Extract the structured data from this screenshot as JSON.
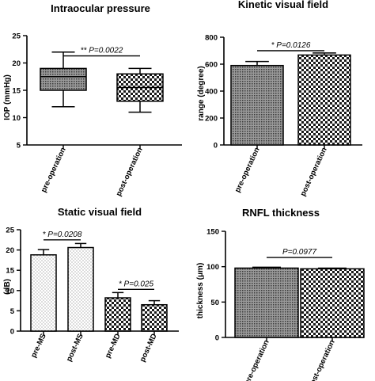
{
  "chart_data": [
    {
      "type": "box",
      "title": "Intraocular pressure",
      "ylabel": "IOP (mmHg)",
      "ylim": [
        5,
        25
      ],
      "yticks": [
        "5",
        "10",
        "15",
        "20",
        "25"
      ],
      "categories": [
        "pre-operation",
        "post-operation"
      ],
      "boxes": [
        {
          "min": 12,
          "q1": 15,
          "median": 17.5,
          "q3": 19,
          "max": 22,
          "pattern": "dots"
        },
        {
          "min": 11,
          "q1": 13,
          "median": 15.5,
          "q3": 18,
          "max": 19,
          "pattern": "checker"
        }
      ],
      "annotations": [
        {
          "text": "** P=0.0022",
          "from": 0,
          "to": 1,
          "y": 21.3
        }
      ]
    },
    {
      "type": "bar",
      "title": "Kinetic visual field",
      "ylabel": "range (degree)",
      "ylim": [
        0,
        800
      ],
      "yticks": [
        "0",
        "200",
        "400",
        "600",
        "800"
      ],
      "categories": [
        "pre-operation",
        "post-operation"
      ],
      "values": [
        590,
        668
      ],
      "errors": [
        30,
        15
      ],
      "patterns": [
        "dots",
        "checker"
      ],
      "annotations": [
        {
          "text": "* P=0.0126",
          "from": 0,
          "to": 1,
          "y": 700
        }
      ]
    },
    {
      "type": "bar",
      "title": "Static visual field",
      "ylabel": "(dB)",
      "ylim": [
        0,
        25
      ],
      "yticks": [
        "0",
        "5",
        "10",
        "15",
        "20",
        "25"
      ],
      "categories": [
        "pre-MS",
        "post-MS",
        "pre-MD",
        "post-MD"
      ],
      "values": [
        18.8,
        20.6,
        8.2,
        6.5
      ],
      "errors": [
        1.3,
        1.0,
        1.3,
        1.0
      ],
      "patterns": [
        "light-dots",
        "light-dots",
        "checker",
        "checker"
      ],
      "annotations": [
        {
          "text": "* P=0.0208",
          "from": 0,
          "to": 1,
          "y": 22.5
        },
        {
          "text": "* P=0.025",
          "from": 2,
          "to": 3,
          "y": 10.3
        }
      ]
    },
    {
      "type": "bar",
      "title": "RNFL thickness",
      "ylabel": "thickness (μm)",
      "ylim": [
        0,
        150
      ],
      "yticks": [
        "0",
        "50",
        "100",
        "150"
      ],
      "categories": [
        "pre-operation",
        "post-operation"
      ],
      "values": [
        98,
        97
      ],
      "errors": [
        1.2,
        1.0
      ],
      "patterns": [
        "dots",
        "checker"
      ],
      "annotations": [
        {
          "text": "P=0.0977",
          "from": 0,
          "to": 1,
          "y": 113
        }
      ]
    }
  ]
}
